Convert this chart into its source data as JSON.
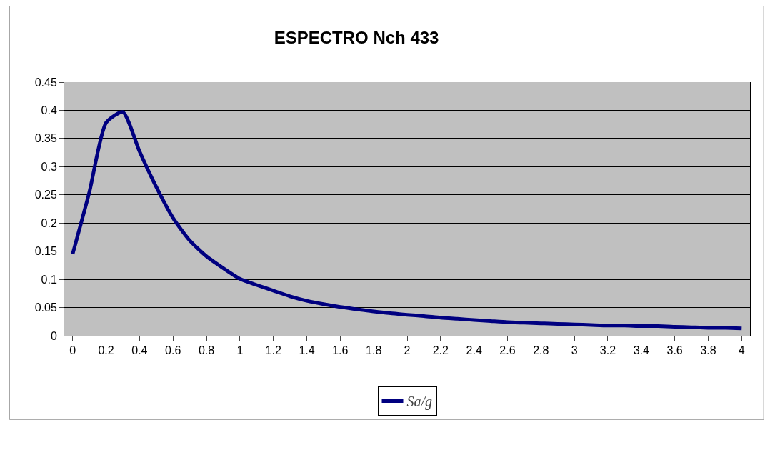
{
  "chart_data": {
    "type": "line",
    "title": "ESPECTRO Nch 433",
    "categories": [
      "0",
      null,
      "0.2",
      null,
      "0.4",
      null,
      "0.6",
      null,
      "0.8",
      null,
      "1",
      null,
      "1.2",
      null,
      "1.4",
      null,
      "1.6",
      null,
      "1.8",
      null,
      "2",
      null,
      "2.2",
      null,
      "2.4",
      null,
      "2.6",
      null,
      "2.8",
      null,
      "3",
      null,
      "3.2",
      null,
      "3.4",
      null,
      "3.6",
      null,
      "3.8",
      null,
      "4"
    ],
    "series": [
      {
        "name": "Sa/g",
        "color": "#000080",
        "values": [
          0.145,
          0.255,
          0.378,
          0.397,
          0.327,
          0.264,
          0.209,
          0.169,
          0.141,
          0.12,
          0.101,
          0.09,
          0.08,
          0.07,
          0.062,
          0.056,
          0.051,
          0.047,
          0.043,
          0.04,
          0.037,
          0.035,
          0.032,
          0.03,
          0.028,
          0.026,
          0.024,
          0.023,
          0.022,
          0.021,
          0.02,
          0.019,
          0.018,
          0.018,
          0.017,
          0.017,
          0.016,
          0.015,
          0.014,
          0.014,
          0.013
        ]
      }
    ],
    "ylim": [
      0,
      0.45
    ],
    "yticks": [
      0,
      0.05,
      0.1,
      0.15,
      0.2,
      0.25,
      0.3,
      0.35,
      0.4,
      0.45
    ],
    "grid": "y",
    "legend": "bottom",
    "marker": "none",
    "line_style": "solid"
  }
}
